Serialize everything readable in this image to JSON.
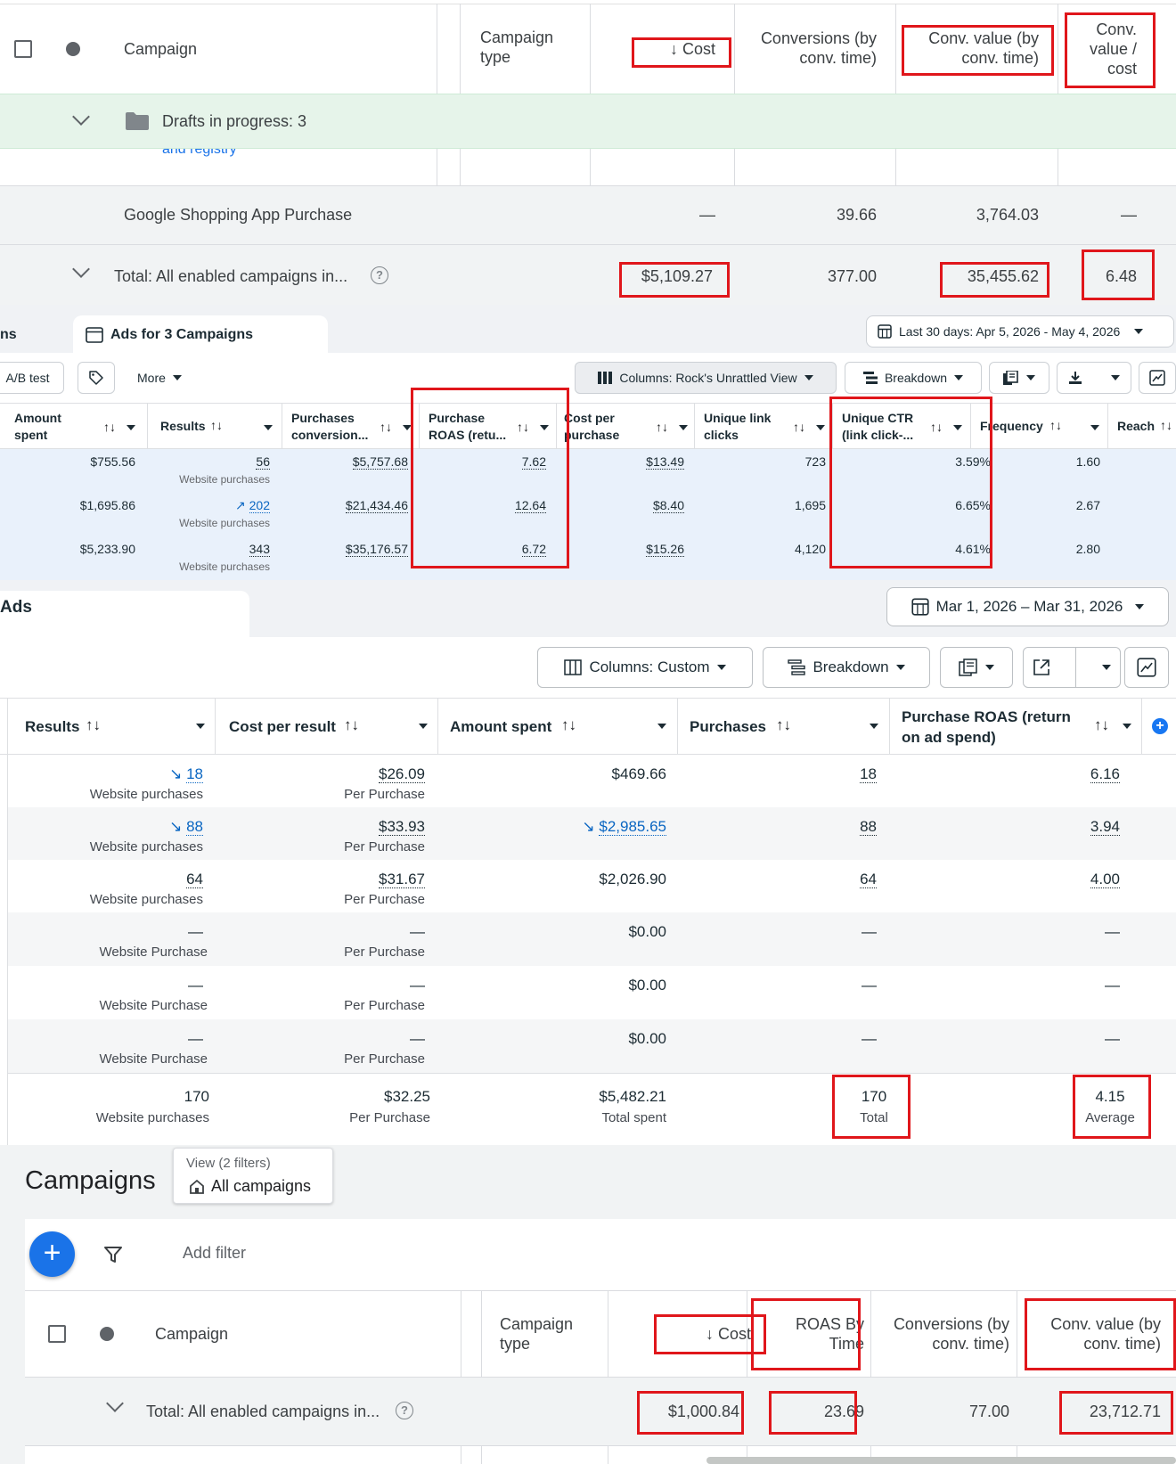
{
  "panel1": {
    "headers": {
      "campaign": "Campaign",
      "campaign_type": "Campaign type",
      "cost": "↓ Cost",
      "conversions": "Conversions (by conv. time)",
      "conv_value": "Conv. value (by conv. time)",
      "conv_value_cost": "Conv. value / cost"
    },
    "drafts_label": "Drafts in progress: 3",
    "partial_link": "and registry",
    "row": {
      "campaign": "Google Shopping App Purchase",
      "cost": "—",
      "conversions": "39.66",
      "conv_value": "3,764.03",
      "conv_value_cost": "—"
    },
    "total": {
      "label": "Total: All enabled campaigns in...",
      "cost": "$5,109.27",
      "conversions": "377.00",
      "conv_value": "35,455.62",
      "conv_value_cost": "6.48"
    }
  },
  "panel2": {
    "tab_partial": "ns",
    "tab_label": "Ads for 3 Campaigns",
    "date_range": "Last 30 days: Apr 5, 2026 - May 4, 2026",
    "toolbar": {
      "ab_test": "A/B test",
      "more": "More",
      "columns": "Columns: Rock's Unrattled View",
      "breakdown": "Breakdown"
    },
    "headers": {
      "amount_spent": "Amount spent",
      "results": "Results",
      "purchases_conv": "Purchases conversion...",
      "purchase_roas": "Purchase ROAS (retu...",
      "cost_per_purchase": "Cost per purchase",
      "unique_link_clicks": "Unique link clicks",
      "unique_ctr": "Unique CTR (link click-...",
      "frequency": "Frequency",
      "reach": "Reach"
    },
    "rows": [
      {
        "amount": "$755.56",
        "results": "56",
        "results_sub": "Website purchases",
        "purchases_conv": "$5,757.68",
        "roas": "7.62",
        "cpp": "$13.49",
        "clicks": "723",
        "ctr": "3.59%",
        "freq": "1.60"
      },
      {
        "amount": "$1,695.86",
        "results": "202",
        "results_sub": "Website purchases",
        "purchases_conv": "$21,434.46",
        "roas": "12.64",
        "cpp": "$8.40",
        "clicks": "1,695",
        "ctr": "6.65%",
        "freq": "2.67"
      },
      {
        "amount": "$5,233.90",
        "results": "343",
        "results_sub": "Website purchases",
        "purchases_conv": "$35,176.57",
        "roas": "6.72",
        "cpp": "$15.26",
        "clicks": "4,120",
        "ctr": "4.61%",
        "freq": "2.80"
      }
    ]
  },
  "panel3": {
    "tab_label": "Ads",
    "date_range": "Mar 1, 2026 – Mar 31, 2026",
    "toolbar": {
      "columns": "Columns: Custom",
      "breakdown": "Breakdown"
    },
    "headers": {
      "results": "Results",
      "cost_per_result": "Cost per result",
      "amount_spent": "Amount spent",
      "purchases": "Purchases",
      "purchase_roas": "Purchase ROAS (return on ad spend)"
    },
    "rows": [
      {
        "results": "18",
        "results_sub": "Website purchases",
        "cpr": "$26.09",
        "cpr_sub": "Per Purchase",
        "amount": "$469.66",
        "purchases": "18",
        "roas": "6.16"
      },
      {
        "results": "88",
        "results_sub": "Website purchases",
        "cpr": "$33.93",
        "cpr_sub": "Per Purchase",
        "amount": "$2,985.65",
        "purchases": "88",
        "roas": "3.94"
      },
      {
        "results": "64",
        "results_sub": "Website purchases",
        "cpr": "$31.67",
        "cpr_sub": "Per Purchase",
        "amount": "$2,026.90",
        "purchases": "64",
        "roas": "4.00"
      },
      {
        "results": "—",
        "results_sub": "Website Purchase",
        "cpr": "—",
        "cpr_sub": "Per Purchase",
        "amount": "$0.00",
        "purchases": "—",
        "roas": "—"
      },
      {
        "results": "—",
        "results_sub": "Website Purchase",
        "cpr": "—",
        "cpr_sub": "Per Purchase",
        "amount": "$0.00",
        "purchases": "—",
        "roas": "—"
      },
      {
        "results": "—",
        "results_sub": "Website Purchase",
        "cpr": "—",
        "cpr_sub": "Per Purchase",
        "amount": "$0.00",
        "purchases": "—",
        "roas": "—"
      }
    ],
    "total": {
      "results": "170",
      "results_sub": "Website purchases",
      "cpr": "$32.25",
      "cpr_sub": "Per Purchase",
      "amount": "$5,482.21",
      "amount_sub": "Total spent",
      "purchases": "170",
      "purchases_sub": "Total",
      "roas": "4.15",
      "roas_sub": "Average"
    }
  },
  "panel4": {
    "title": "Campaigns",
    "view_label": "View (2 filters)",
    "view_value": "All campaigns",
    "add_filter": "Add filter",
    "headers": {
      "campaign": "Campaign",
      "campaign_type": "Campaign type",
      "cost": "↓ Cost",
      "roas_by_time": "ROAS By Time",
      "conversions": "Conversions (by conv. time)",
      "conv_value": "Conv. value (by conv. time)"
    },
    "total": {
      "label": "Total: All enabled campaigns in...",
      "cost": "$1,000.84",
      "roas": "23.69",
      "conversions": "77.00",
      "conv_value": "23,712.71"
    }
  },
  "icons": {
    "help": "?",
    "plus": "+",
    "sort": "↑↓"
  }
}
